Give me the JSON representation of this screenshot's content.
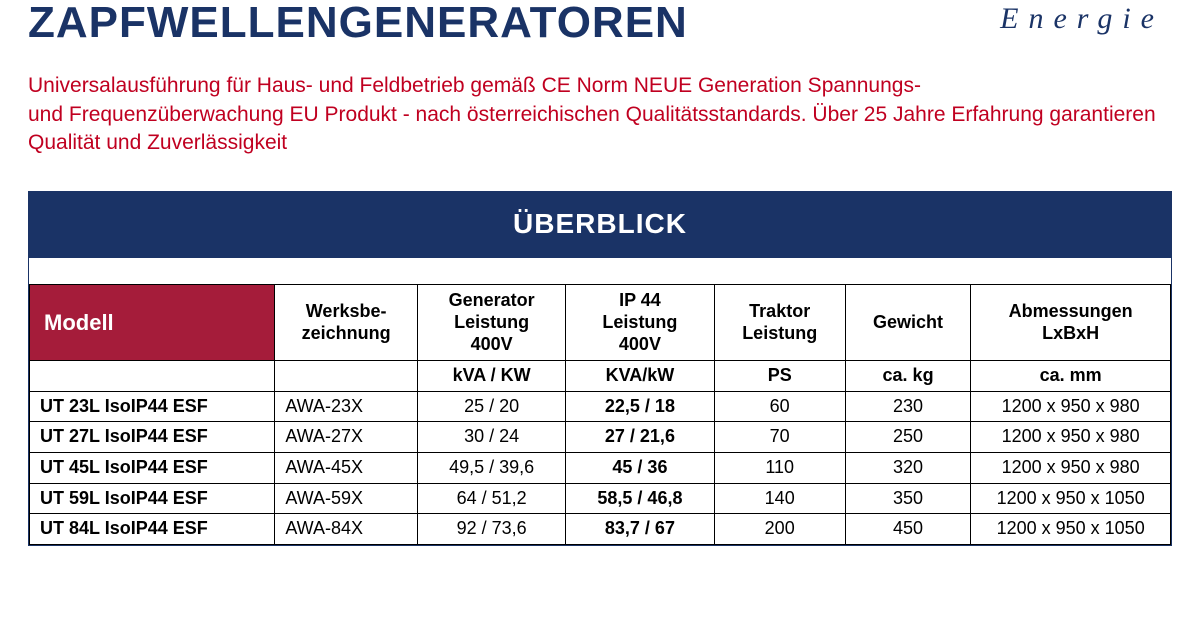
{
  "header": {
    "title": "ZAPFWELLENGENERATOREN",
    "brand": "Energie"
  },
  "subtitle": "Universalausführung für Haus- und Feldbetrieb gemäß CE Norm NEUE Generation Spannungs-\nund Frequenzüberwachung EU Produkt - nach österreichischen Qualitätsstandards. Über 25 Jahre Erfahrung garantieren Qualität und Zuverlässigkeit",
  "table": {
    "overview_title": "ÜBERBLICK",
    "columns": {
      "c1": "Modell",
      "c2": "Werksbe-\nzeichnung",
      "c3": "Generator\nLeistung\n400V",
      "c4": "IP 44\nLeistung\n400V",
      "c5": "Traktor\nLeistung",
      "c6": "Gewicht",
      "c7": "Abmessungen\nLxBxH"
    },
    "units": {
      "c1": "",
      "c2": "",
      "c3": "kVA / KW",
      "c4": "KVA/kW",
      "c5": "PS",
      "c6": "ca. kg",
      "c7": "ca. mm"
    },
    "rows": [
      {
        "model": "UT 23L IsoIP44 ESF",
        "werks": "AWA-23X",
        "gen": "25 / 20",
        "ip44": "22,5 / 18",
        "traktor": "60",
        "gewicht": "230",
        "abm": "1200 x 950 x 980"
      },
      {
        "model": "UT 27L IsoIP44 ESF",
        "werks": "AWA-27X",
        "gen": "30 / 24",
        "ip44": "27 / 21,6",
        "traktor": "70",
        "gewicht": "250",
        "abm": "1200 x 950 x 980"
      },
      {
        "model": "UT 45L IsoIP44 ESF",
        "werks": "AWA-45X",
        "gen": "49,5 / 39,6",
        "ip44": "45 / 36",
        "traktor": "110",
        "gewicht": "320",
        "abm": "1200 x 950 x 980"
      },
      {
        "model": "UT 59L IsoIP44 ESF",
        "werks": "AWA-59X",
        "gen": "64 / 51,2",
        "ip44": "58,5 / 46,8",
        "traktor": "140",
        "gewicht": "350",
        "abm": "1200 x 950 x 1050"
      },
      {
        "model": "UT 84L IsoIP44 ESF",
        "werks": "AWA-84X",
        "gen": "92 / 73,6",
        "ip44": "83,7 / 67",
        "traktor": "200",
        "gewicht": "450",
        "abm": "1200 x 950 x 1050"
      }
    ]
  },
  "colors": {
    "title": "#1a3366",
    "subtitle": "#c00020",
    "header_bg": "#a51c3a",
    "border": "#000000",
    "background": "#ffffff"
  }
}
